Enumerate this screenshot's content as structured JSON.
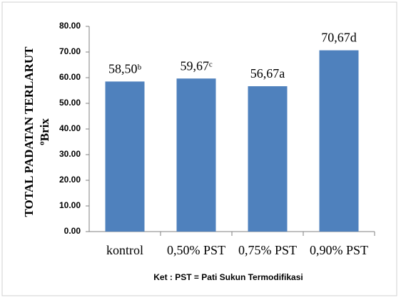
{
  "chart_data": {
    "type": "bar",
    "y_axis_label": [
      "TOTAL PADATAN TERLARUT",
      "ºBrix"
    ],
    "categories": [
      "kontrol",
      "0,50% PST",
      "0,75% PST",
      "0,90% PST"
    ],
    "values": [
      58.5,
      59.67,
      56.67,
      70.67
    ],
    "value_labels": [
      "58,50ᵇ",
      "59,67ᶜ",
      "56,67a",
      "70,67d"
    ],
    "color": "#4f81bd",
    "ylim": [
      0,
      80
    ],
    "yticks": [
      {
        "value": 0,
        "label": "0.00"
      },
      {
        "value": 10,
        "label": "10.00"
      },
      {
        "value": 20,
        "label": "20.00"
      },
      {
        "value": 30,
        "label": "30.00"
      },
      {
        "value": 40,
        "label": "40.00"
      },
      {
        "value": 50,
        "label": "50.00"
      },
      {
        "value": 60,
        "label": "60.00"
      },
      {
        "value": 70,
        "label": "70.00"
      },
      {
        "value": 80,
        "label": "80.00"
      }
    ],
    "grid": false,
    "note": "Ket : PST = Pati Sukun Termodifikasi"
  }
}
